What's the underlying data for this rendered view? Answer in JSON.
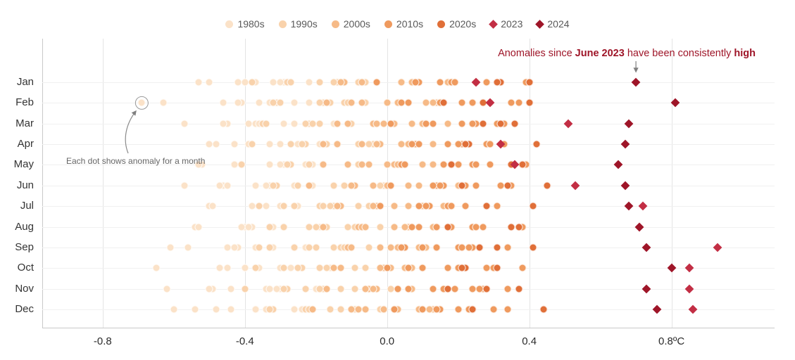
{
  "annotations": {
    "high_note": {
      "part1": "Anomalies since ",
      "bold1": "June 2023",
      "part2": " have been consistently ",
      "bold2": "high",
      "color": "#9e1528"
    },
    "dot_note": "Each dot shows anomaly for a month"
  },
  "chart_data": {
    "type": "scatter",
    "unit": "°C",
    "months": [
      "Jan",
      "Feb",
      "Mar",
      "Apr",
      "May",
      "Jun",
      "Jul",
      "Aug",
      "Sep",
      "Oct",
      "Nov",
      "Dec"
    ],
    "start_year": 1980,
    "end_year": 2022,
    "x_ticks": [
      -0.8,
      -0.4,
      0.0,
      0.4,
      0.8
    ],
    "x_tick_labels": [
      "-0.8",
      "-0.4",
      "0.0",
      "0.4",
      "0.8ºC"
    ],
    "xlim": [
      -0.97,
      1.09
    ],
    "grid": true,
    "legend_position": "top",
    "decades": [
      {
        "label": "1980s",
        "color": "#fbe2c8"
      },
      {
        "label": "1990s",
        "color": "#f9d2ab"
      },
      {
        "label": "2000s",
        "color": "#f6ba87"
      },
      {
        "label": "2010s",
        "color": "#ef9a5e"
      },
      {
        "label": "2020s",
        "color": "#e06f38"
      }
    ],
    "specials": [
      {
        "label": "2023",
        "color": "#c22e44",
        "values": [
          0.25,
          0.29,
          0.51,
          0.32,
          0.36,
          0.53,
          0.72,
          0.71,
          0.93,
          0.85,
          0.85,
          0.86
        ]
      },
      {
        "label": "2024",
        "color": "#9e1528",
        "values": [
          0.7,
          0.81,
          0.68,
          0.67,
          0.65,
          0.67,
          0.68,
          0.71,
          0.73,
          0.8,
          0.73,
          0.76
        ]
      }
    ],
    "monthly_anomalies": [
      [
        -0.4,
        -0.53,
        -0.29,
        -0.42,
        -0.3,
        -0.5,
        -0.32,
        -0.22,
        -0.37,
        -0.28,
        -0.38,
        -0.19,
        -0.28,
        -0.08,
        -0.28,
        -0.14,
        -0.06,
        -0.15,
        -0.27,
        -0.03,
        -0.07,
        -0.12,
        0.07,
        -0.13,
        0.04,
        0.07,
        -0.07,
        0.17,
        0.04,
        0.17,
        -0.03,
        0.15,
        0.25,
        0.09,
        0.18,
        0.08,
        0.28,
        0.19,
        0.39,
        0.19,
        0.32,
        0.4,
        0.31
      ],
      [
        -0.69,
        -0.46,
        -0.33,
        -0.63,
        -0.36,
        -0.26,
        -0.41,
        -0.32,
        -0.42,
        -0.22,
        -0.31,
        -0.12,
        -0.32,
        -0.18,
        -0.1,
        -0.19,
        -0.3,
        -0.06,
        -0.11,
        -0.16,
        0.03,
        -0.17,
        0.0,
        0.03,
        -0.1,
        0.14,
        0.0,
        0.13,
        -0.07,
        0.11,
        0.21,
        0.06,
        0.15,
        0.04,
        0.24,
        0.15,
        0.35,
        0.15,
        0.29,
        0.37,
        0.27,
        0.16,
        0.4
      ],
      [
        -0.37,
        -0.57,
        -0.39,
        -0.29,
        -0.45,
        -0.36,
        -0.46,
        -0.26,
        -0.35,
        -0.15,
        -0.35,
        -0.22,
        -0.14,
        -0.23,
        -0.34,
        -0.1,
        -0.14,
        -0.19,
        -0.01,
        -0.21,
        -0.04,
        -0.01,
        -0.14,
        0.1,
        -0.03,
        0.1,
        -0.11,
        0.07,
        0.17,
        0.02,
        0.11,
        0.01,
        0.21,
        0.11,
        0.31,
        0.11,
        0.25,
        0.33,
        0.24,
        0.13,
        0.36,
        0.32,
        0.27
      ],
      [
        -0.43,
        -0.33,
        -0.48,
        -0.39,
        -0.5,
        -0.3,
        -0.39,
        -0.19,
        -0.39,
        -0.25,
        -0.17,
        -0.27,
        -0.38,
        -0.14,
        -0.18,
        -0.23,
        -0.04,
        -0.24,
        -0.08,
        -0.05,
        -0.18,
        0.06,
        -0.07,
        0.06,
        -0.14,
        0.04,
        0.13,
        -0.02,
        0.07,
        -0.03,
        0.17,
        0.08,
        0.28,
        0.07,
        0.21,
        0.29,
        0.2,
        0.09,
        0.33,
        0.29,
        0.23,
        0.42,
        0.22
      ],
      [
        -0.52,
        -0.43,
        -0.53,
        -0.33,
        -0.43,
        -0.23,
        -0.43,
        -0.29,
        -0.21,
        -0.3,
        -0.41,
        -0.18,
        -0.22,
        -0.27,
        -0.08,
        -0.28,
        -0.11,
        -0.08,
        -0.22,
        0.02,
        -0.11,
        0.02,
        -0.18,
        0.0,
        0.1,
        -0.05,
        0.03,
        -0.07,
        0.13,
        0.04,
        0.24,
        0.04,
        0.18,
        0.25,
        0.16,
        0.05,
        0.29,
        0.25,
        0.2,
        0.39,
        0.18,
        0.35,
        0.38
      ],
      [
        -0.57,
        -0.37,
        -0.46,
        -0.26,
        -0.47,
        -0.33,
        -0.25,
        -0.34,
        -0.45,
        -0.21,
        -0.25,
        -0.31,
        -0.12,
        -0.32,
        -0.15,
        -0.12,
        -0.25,
        -0.01,
        -0.15,
        -0.02,
        -0.22,
        -0.04,
        0.06,
        -0.09,
        0.0,
        -0.1,
        0.09,
        0.0,
        0.2,
        0.0,
        0.14,
        0.22,
        0.13,
        0.01,
        0.25,
        0.21,
        0.16,
        0.35,
        0.15,
        0.32,
        0.34,
        0.21,
        0.45
      ],
      [
        -0.5,
        -0.3,
        -0.5,
        -0.36,
        -0.29,
        -0.38,
        -0.49,
        -0.25,
        -0.29,
        -0.34,
        -0.15,
        -0.36,
        -0.19,
        -0.16,
        -0.29,
        -0.05,
        -0.18,
        -0.05,
        -0.26,
        -0.08,
        0.02,
        -0.13,
        -0.04,
        -0.14,
        0.06,
        -0.03,
        0.16,
        -0.04,
        0.1,
        0.18,
        0.09,
        -0.02,
        0.22,
        0.17,
        0.12,
        0.31,
        0.11,
        0.28,
        0.31,
        0.18,
        0.41,
        0.28,
        0.41
      ],
      [
        -0.54,
        -0.4,
        -0.32,
        -0.41,
        -0.53,
        -0.29,
        -0.33,
        -0.38,
        -0.19,
        -0.39,
        -0.22,
        -0.2,
        -0.33,
        -0.09,
        -0.22,
        -0.09,
        -0.29,
        -0.11,
        -0.02,
        -0.17,
        -0.08,
        -0.18,
        0.02,
        -0.07,
        0.13,
        -0.07,
        0.06,
        0.14,
        0.05,
        -0.06,
        0.18,
        0.14,
        0.09,
        0.27,
        0.07,
        0.24,
        0.27,
        0.14,
        0.38,
        0.25,
        0.37,
        0.17,
        0.35
      ],
      [
        -0.61,
        -0.45,
        -0.56,
        -0.32,
        -0.37,
        -0.42,
        -0.23,
        -0.43,
        -0.26,
        -0.23,
        -0.36,
        -0.13,
        -0.26,
        -0.13,
        -0.33,
        -0.15,
        -0.05,
        -0.2,
        -0.12,
        -0.22,
        -0.02,
        -0.11,
        0.09,
        -0.11,
        0.03,
        0.11,
        0.01,
        -0.1,
        0.14,
        0.1,
        0.05,
        0.24,
        0.04,
        0.2,
        0.23,
        0.1,
        0.34,
        0.21,
        0.34,
        0.14,
        0.31,
        0.41,
        0.26
      ],
      [
        -0.65,
        -0.36,
        -0.4,
        -0.45,
        -0.27,
        -0.47,
        -0.3,
        -0.27,
        -0.4,
        -0.16,
        -0.29,
        -0.17,
        -0.37,
        -0.19,
        -0.09,
        -0.24,
        -0.15,
        -0.25,
        -0.06,
        -0.15,
        0.05,
        -0.15,
        -0.01,
        0.07,
        -0.02,
        -0.13,
        0.1,
        0.06,
        0.01,
        0.2,
        0.0,
        0.17,
        0.2,
        0.06,
        0.3,
        0.17,
        0.3,
        0.1,
        0.28,
        0.38,
        0.22,
        0.31,
        0.21
      ],
      [
        -0.62,
        -0.49,
        -0.3,
        -0.5,
        -0.34,
        -0.31,
        -0.44,
        -0.2,
        -0.33,
        -0.2,
        -0.4,
        -0.23,
        -0.13,
        -0.28,
        -0.19,
        -0.29,
        -0.09,
        -0.18,
        0.01,
        -0.19,
        -0.05,
        0.03,
        -0.06,
        -0.17,
        0.07,
        0.03,
        -0.03,
        0.16,
        -0.04,
        0.13,
        0.16,
        0.03,
        0.27,
        0.13,
        0.26,
        0.06,
        0.24,
        0.34,
        0.19,
        0.28,
        0.17,
        0.37,
        0.28
      ],
      [
        -0.6,
        -0.54,
        -0.37,
        -0.34,
        -0.48,
        -0.24,
        -0.37,
        -0.24,
        -0.44,
        -0.26,
        -0.16,
        -0.32,
        -0.23,
        -0.33,
        -0.13,
        -0.22,
        -0.02,
        -0.22,
        -0.09,
        -0.01,
        -0.1,
        -0.21,
        0.03,
        -0.01,
        -0.06,
        0.13,
        -0.08,
        0.09,
        0.12,
        -0.01,
        0.23,
        0.1,
        0.23,
        0.02,
        0.2,
        0.3,
        0.15,
        0.24,
        0.14,
        0.34,
        0.24,
        0.44,
        0.24
      ]
    ],
    "circled_point": {
      "month": "Feb",
      "year": 1980,
      "value": -0.69
    }
  }
}
